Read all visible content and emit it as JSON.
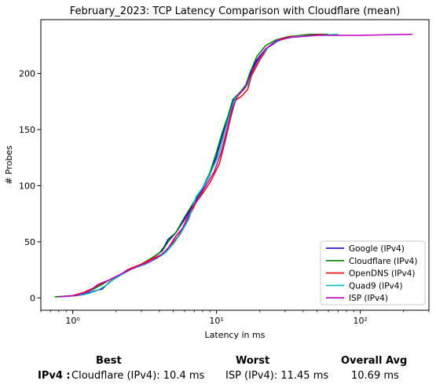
{
  "chart_data": {
    "type": "line",
    "title": "February_2023: TCP Latency Comparison with Cloudflare (mean)",
    "xlabel": "Latency in ms",
    "ylabel": "# Probes",
    "xscale": "log",
    "xlim": [
      0.6,
      300
    ],
    "ylim": [
      -11,
      248
    ],
    "xticks": [
      1,
      10,
      100
    ],
    "xtick_labels": [
      "10⁰",
      "10¹",
      "10²"
    ],
    "yticks": [
      0,
      50,
      100,
      150,
      200
    ],
    "legend_position": "lower-right",
    "grid": false,
    "series": [
      {
        "name": "Google (IPv4)",
        "color": "#0000cc",
        "points": [
          [
            0.78,
            1
          ],
          [
            1.05,
            2
          ],
          [
            1.2,
            3
          ],
          [
            1.4,
            6
          ],
          [
            1.6,
            8
          ],
          [
            1.8,
            14
          ],
          [
            2.0,
            18
          ],
          [
            2.4,
            25
          ],
          [
            3.0,
            30
          ],
          [
            3.5,
            35
          ],
          [
            4.0,
            40
          ],
          [
            4.3,
            45
          ],
          [
            4.6,
            52
          ],
          [
            5.2,
            58
          ],
          [
            6.0,
            70
          ],
          [
            7.0,
            85
          ],
          [
            8.0,
            97
          ],
          [
            9.0,
            110
          ],
          [
            10.0,
            126
          ],
          [
            11.0,
            145
          ],
          [
            12.0,
            160
          ],
          [
            13.0,
            176
          ],
          [
            14.5,
            182
          ],
          [
            16.0,
            188
          ],
          [
            17.0,
            198
          ],
          [
            19.0,
            212
          ],
          [
            22.0,
            222
          ],
          [
            26.0,
            228
          ],
          [
            30.0,
            232
          ],
          [
            40.0,
            234
          ],
          [
            55.0,
            235
          ]
        ]
      },
      {
        "name": "Cloudflare (IPv4)",
        "color": "#008000",
        "points": [
          [
            0.75,
            1
          ],
          [
            1.0,
            2
          ],
          [
            1.2,
            4
          ],
          [
            1.4,
            8
          ],
          [
            1.6,
            12
          ],
          [
            1.8,
            16
          ],
          [
            2.0,
            19
          ],
          [
            2.4,
            24
          ],
          [
            3.0,
            30
          ],
          [
            3.6,
            36
          ],
          [
            4.2,
            42
          ],
          [
            4.6,
            50
          ],
          [
            5.2,
            58
          ],
          [
            6.0,
            72
          ],
          [
            7.0,
            86
          ],
          [
            8.0,
            98
          ],
          [
            9.0,
            112
          ],
          [
            10.0,
            130
          ],
          [
            11.0,
            148
          ],
          [
            12.0,
            162
          ],
          [
            13.0,
            177
          ],
          [
            14.5,
            183
          ],
          [
            16.0,
            190
          ],
          [
            17.0,
            200
          ],
          [
            19.0,
            215
          ],
          [
            22.0,
            225
          ],
          [
            26.0,
            230
          ],
          [
            32.0,
            233
          ],
          [
            45.0,
            235
          ],
          [
            60.0,
            235
          ]
        ]
      },
      {
        "name": "OpenDNS (IPv4)",
        "color": "#ff0000",
        "points": [
          [
            0.8,
            1
          ],
          [
            1.0,
            2
          ],
          [
            1.2,
            5
          ],
          [
            1.4,
            9
          ],
          [
            1.6,
            13
          ],
          [
            1.8,
            16
          ],
          [
            2.1,
            20
          ],
          [
            2.5,
            26
          ],
          [
            3.0,
            30
          ],
          [
            3.6,
            35
          ],
          [
            4.2,
            39
          ],
          [
            4.8,
            47
          ],
          [
            5.4,
            55
          ],
          [
            6.2,
            68
          ],
          [
            7.2,
            85
          ],
          [
            8.2,
            95
          ],
          [
            9.2,
            105
          ],
          [
            10.5,
            120
          ],
          [
            11.5,
            140
          ],
          [
            12.5,
            160
          ],
          [
            13.5,
            176
          ],
          [
            15.0,
            180
          ],
          [
            16.5,
            186
          ],
          [
            17.5,
            198
          ],
          [
            20.0,
            212
          ],
          [
            23.0,
            224
          ],
          [
            27.0,
            230
          ],
          [
            33.0,
            233
          ],
          [
            45.0,
            234
          ],
          [
            55.0,
            235
          ]
        ]
      },
      {
        "name": "Quad9 (IPv4)",
        "color": "#00bfbf",
        "points": [
          [
            0.8,
            1
          ],
          [
            1.05,
            2
          ],
          [
            1.3,
            4
          ],
          [
            1.5,
            7
          ],
          [
            1.7,
            11
          ],
          [
            1.9,
            16
          ],
          [
            2.2,
            21
          ],
          [
            2.6,
            26
          ],
          [
            3.2,
            30
          ],
          [
            3.8,
            35
          ],
          [
            4.4,
            40
          ],
          [
            5.0,
            48
          ],
          [
            5.6,
            57
          ],
          [
            6.4,
            70
          ],
          [
            7.2,
            90
          ],
          [
            8.2,
            100
          ],
          [
            9.2,
            113
          ],
          [
            10.4,
            128
          ],
          [
            11.5,
            150
          ],
          [
            12.5,
            166
          ],
          [
            13.5,
            178
          ],
          [
            15.0,
            184
          ],
          [
            16.5,
            190
          ],
          [
            18.0,
            204
          ],
          [
            21.0,
            218
          ],
          [
            24.0,
            226
          ],
          [
            28.0,
            230
          ],
          [
            35.0,
            233
          ],
          [
            50.0,
            234
          ],
          [
            70.0,
            235
          ]
        ]
      },
      {
        "name": "ISP (IPv4)",
        "color": "#bf00bf",
        "points": [
          [
            0.8,
            1
          ],
          [
            1.05,
            2
          ],
          [
            1.3,
            6
          ],
          [
            1.5,
            12
          ],
          [
            1.8,
            16
          ],
          [
            2.0,
            19
          ],
          [
            2.4,
            24
          ],
          [
            2.8,
            28
          ],
          [
            3.4,
            32
          ],
          [
            4.0,
            37
          ],
          [
            4.6,
            44
          ],
          [
            5.2,
            55
          ],
          [
            5.8,
            62
          ],
          [
            6.6,
            78
          ],
          [
            7.6,
            90
          ],
          [
            8.6,
            102
          ],
          [
            9.6,
            112
          ],
          [
            10.8,
            130
          ],
          [
            11.8,
            150
          ],
          [
            12.8,
            168
          ],
          [
            14.0,
            180
          ],
          [
            15.5,
            186
          ],
          [
            17.0,
            196
          ],
          [
            19.0,
            210
          ],
          [
            22.0,
            222
          ],
          [
            26.0,
            229
          ],
          [
            32.0,
            232
          ],
          [
            50.0,
            234
          ],
          [
            100.0,
            234
          ],
          [
            230.0,
            235
          ]
        ]
      }
    ]
  },
  "stats": {
    "headers": {
      "best": "Best",
      "worst": "Worst",
      "avg": "Overall Avg"
    },
    "row_label": "IPv4 :",
    "best": "Cloudflare (IPv4): 10.4 ms",
    "worst": "ISP (IPv4): 11.45 ms",
    "avg": "10.69 ms"
  }
}
